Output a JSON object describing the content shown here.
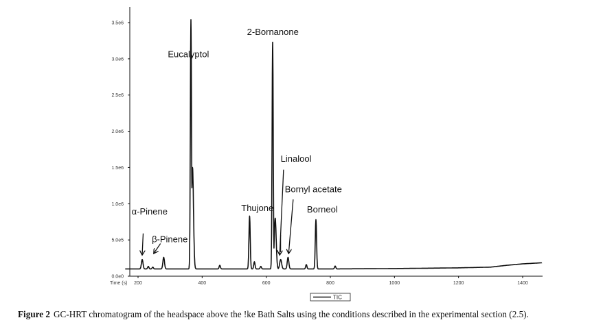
{
  "chart_data": {
    "type": "line",
    "xlabel": "Time (s)",
    "ylabel": "",
    "xlim": [
      160,
      1470
    ],
    "ylim": [
      0,
      3700000
    ],
    "x_ticks": [
      {
        "value": 200,
        "label": "200"
      },
      {
        "value": 400,
        "label": "400"
      },
      {
        "value": 600,
        "label": "600"
      },
      {
        "value": 800,
        "label": "800"
      },
      {
        "value": 1000,
        "label": "1000"
      },
      {
        "value": 1200,
        "label": "1200"
      },
      {
        "value": 1400,
        "label": "1400"
      }
    ],
    "y_ticks": [
      {
        "value": 0,
        "label": "0.0e0"
      },
      {
        "value": 500000,
        "label": "5.0e5"
      },
      {
        "value": 1000000,
        "label": "1.0e6"
      },
      {
        "value": 1500000,
        "label": "1.5e6"
      },
      {
        "value": 2000000,
        "label": "2.0e6"
      },
      {
        "value": 2500000,
        "label": "2.5e6"
      },
      {
        "value": 3000000,
        "label": "3.0e6"
      },
      {
        "value": 3500000,
        "label": "3.5e6"
      }
    ],
    "grid": false,
    "legend": {
      "position": "bottom-center",
      "entries": [
        "TIC"
      ]
    },
    "series": [
      {
        "name": "TIC",
        "color": "#111111",
        "baseline": [
          [
            160,
            100000
          ],
          [
            400,
            100000
          ],
          [
            600,
            100000
          ],
          [
            800,
            100000
          ],
          [
            1000,
            105000
          ],
          [
            1200,
            115000
          ],
          [
            1300,
            125000
          ],
          [
            1350,
            150000
          ],
          [
            1400,
            170000
          ],
          [
            1460,
            185000
          ]
        ],
        "peaks": [
          {
            "x": 213,
            "y": 230000,
            "w": 2.5
          },
          {
            "x": 232,
            "y": 135000,
            "w": 2
          },
          {
            "x": 246,
            "y": 125000,
            "w": 2
          },
          {
            "x": 280,
            "y": 260000,
            "w": 2.5
          },
          {
            "x": 365,
            "y": 3540000,
            "w": 1.8
          },
          {
            "x": 370,
            "y": 1500000,
            "w": 3
          },
          {
            "x": 455,
            "y": 150000,
            "w": 2
          },
          {
            "x": 548,
            "y": 830000,
            "w": 2
          },
          {
            "x": 563,
            "y": 200000,
            "w": 2
          },
          {
            "x": 583,
            "y": 135000,
            "w": 2
          },
          {
            "x": 620,
            "y": 3230000,
            "w": 1.8
          },
          {
            "x": 628,
            "y": 800000,
            "w": 3
          },
          {
            "x": 645,
            "y": 230000,
            "w": 3
          },
          {
            "x": 668,
            "y": 260000,
            "w": 2.5
          },
          {
            "x": 725,
            "y": 160000,
            "w": 2
          },
          {
            "x": 755,
            "y": 780000,
            "w": 2
          },
          {
            "x": 815,
            "y": 140000,
            "w": 2
          }
        ]
      }
    ],
    "annotations": [
      {
        "text": "Eucalyptol",
        "x": 293,
        "y": 3020000
      },
      {
        "text": "2-Bornanone",
        "x": 540,
        "y": 3330000
      },
      {
        "text": "Linalool",
        "x": 645,
        "y": 1580000
      },
      {
        "text": "Bornyl acetate",
        "x": 658,
        "y": 1160000
      },
      {
        "text": "Borneol",
        "x": 727,
        "y": 880000
      },
      {
        "text": "Thujone",
        "x": 522,
        "y": 900000
      },
      {
        "text": "α-Pinene",
        "x": 180,
        "y": 850000
      },
      {
        "text": "β-Pinene",
        "x": 243,
        "y": 470000
      }
    ],
    "arrows": [
      {
        "from": [
          216,
          590000
        ],
        "to": [
          213,
          300000
        ]
      },
      {
        "from": [
          270,
          450000
        ],
        "to": [
          250,
          320000
        ]
      },
      {
        "from": [
          654,
          1470000
        ],
        "to": [
          642,
          300000
        ]
      },
      {
        "from": [
          684,
          1060000
        ],
        "to": [
          670,
          320000
        ]
      }
    ],
    "guide_lines": [
      {
        "from": [
          645,
          570000
        ],
        "to": [
          645,
          330000
        ]
      }
    ]
  },
  "caption": {
    "figure_label": "Figure 2",
    "text": "GC-HRT chromatogram of the headspace above the !ke Bath Salts using the conditions described in the experimental section (2.5)."
  }
}
